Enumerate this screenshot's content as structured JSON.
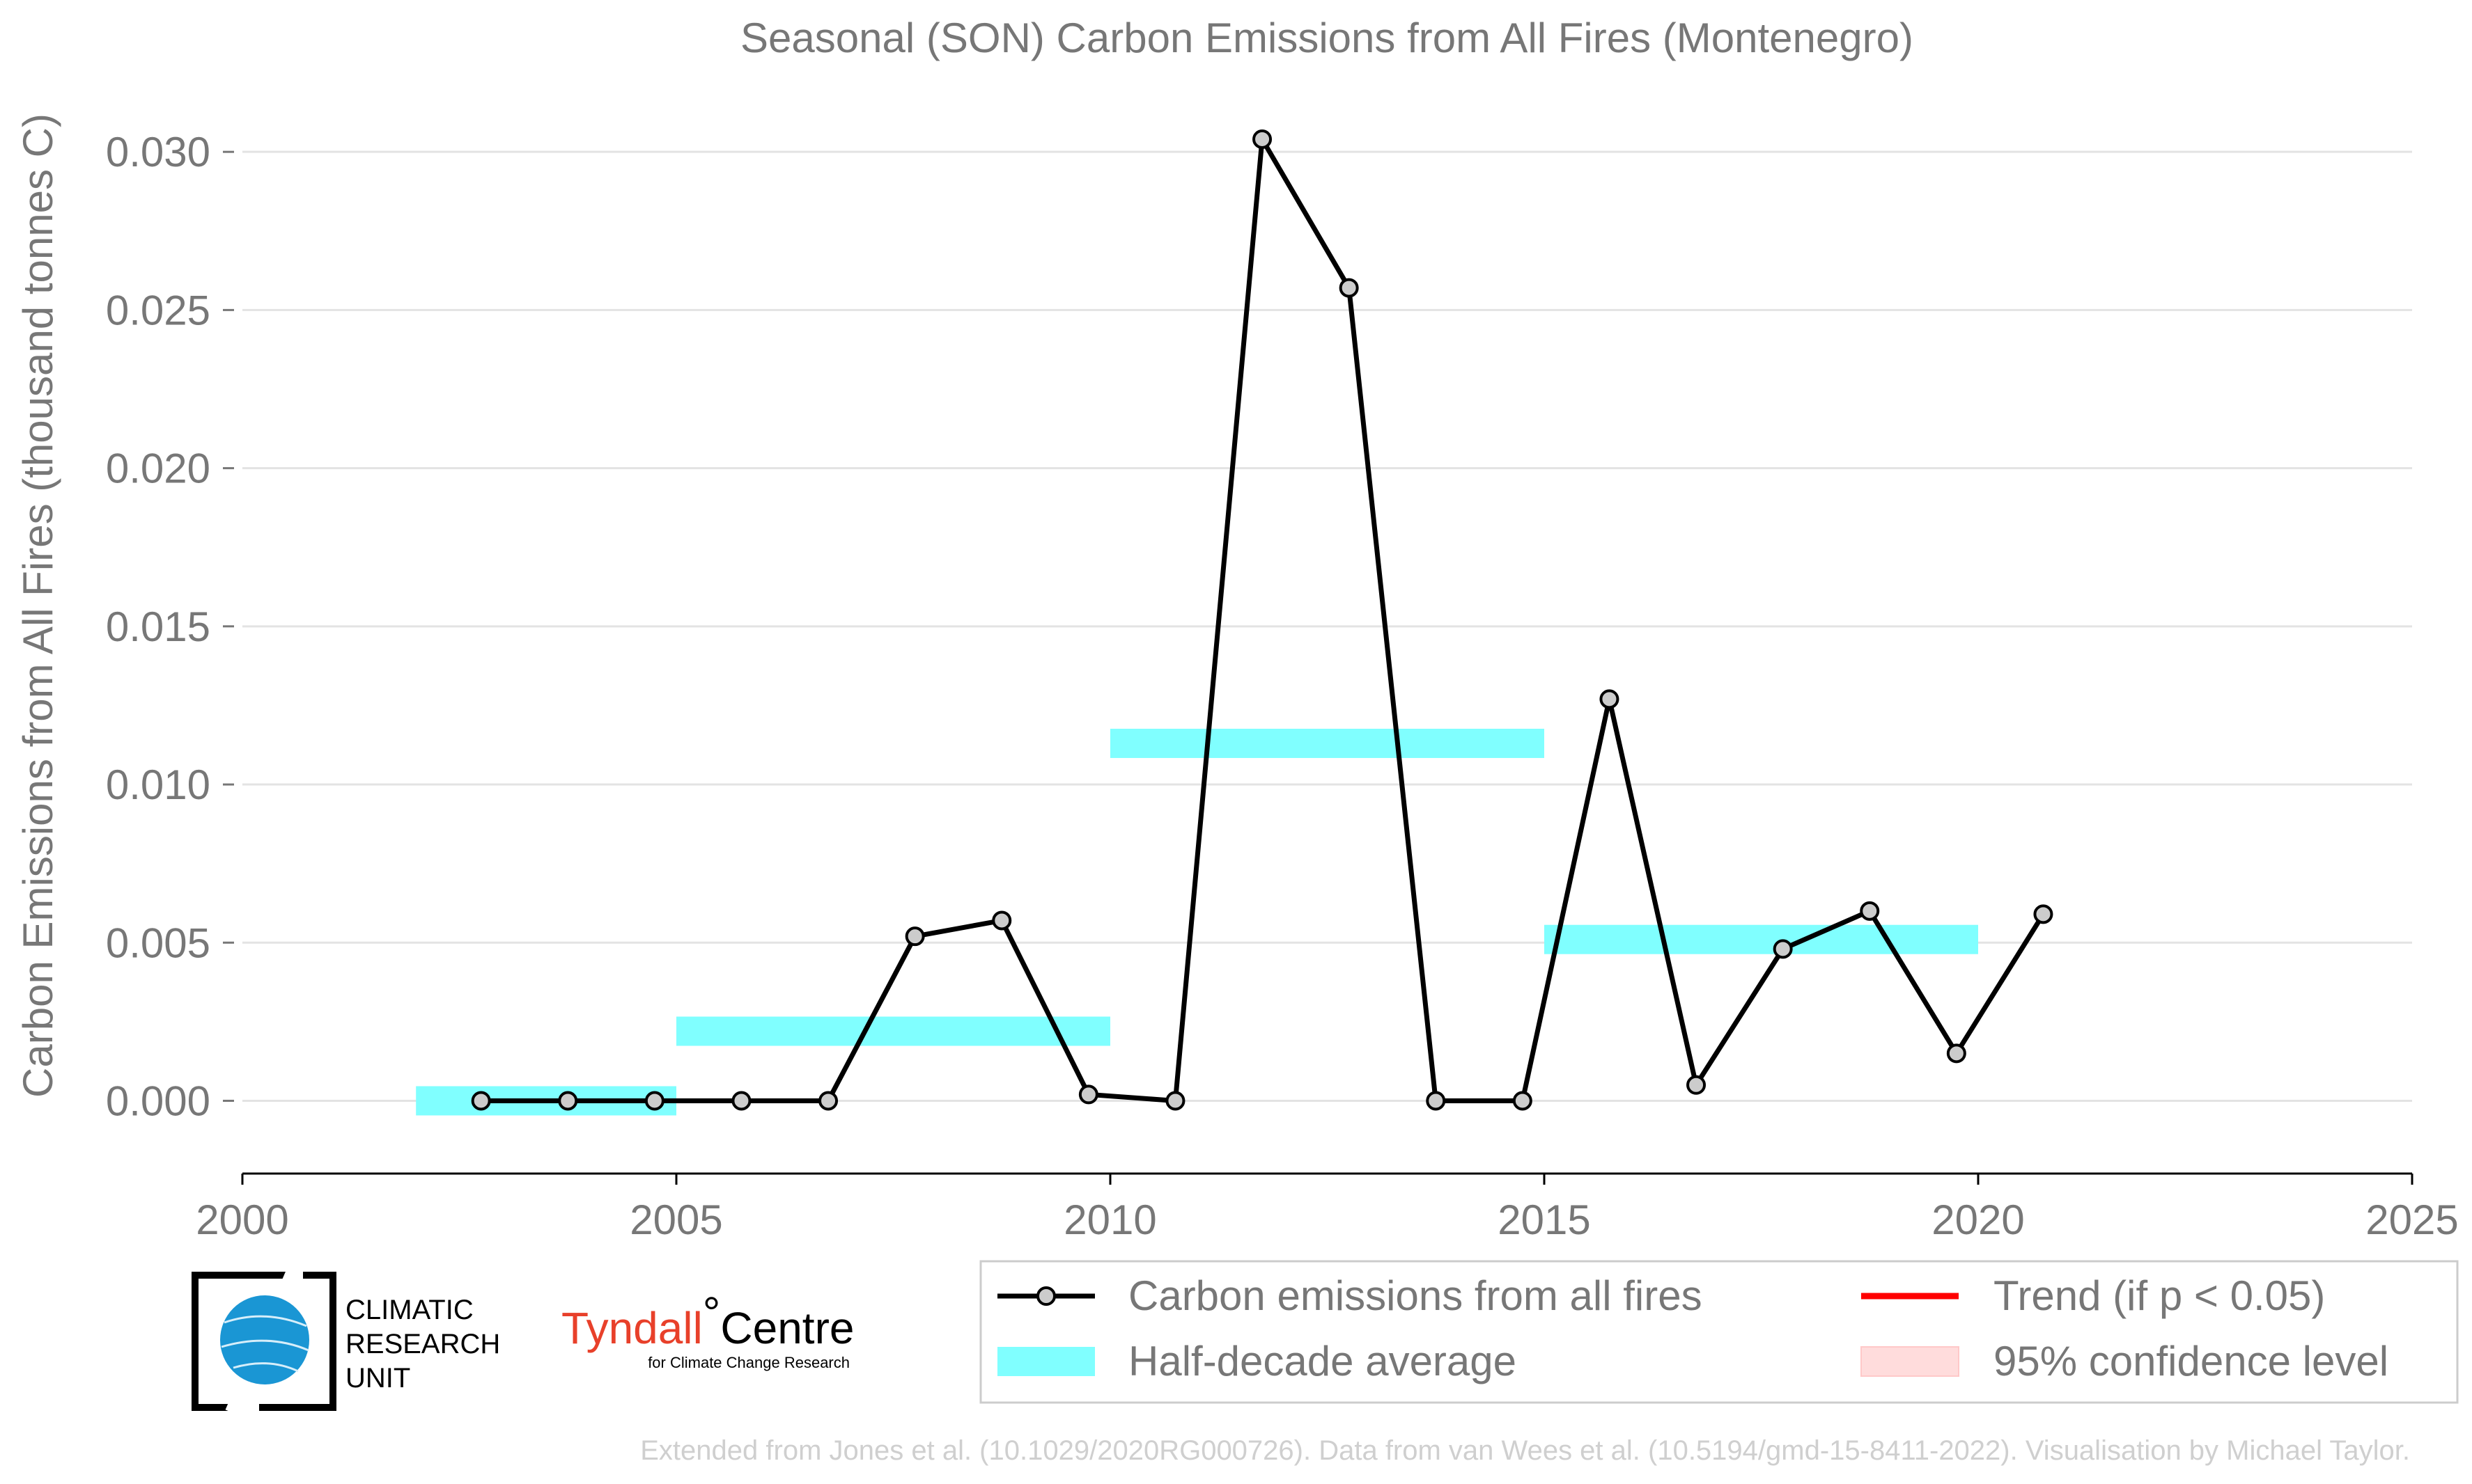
{
  "chart_data": {
    "type": "line",
    "title": "Seasonal (SON) Carbon Emissions from All Fires (Montenegro)",
    "ylabel": "Carbon Emissions from All Fires (thousand tonnes C)",
    "xlim": [
      2000,
      2025
    ],
    "ylim": [
      -0.0023,
      0.0315
    ],
    "xticks": [
      "2000",
      "2005",
      "2010",
      "2015",
      "2020",
      "2025"
    ],
    "yticks": [
      "0.000",
      "0.005",
      "0.010",
      "0.015",
      "0.020",
      "0.025",
      "0.030"
    ],
    "grid": "horizontal",
    "series": [
      {
        "name": "Carbon emissions from all fires",
        "color": "#000000",
        "marker_fill": "#cccccc",
        "x": [
          2002.75,
          2003.75,
          2004.75,
          2005.75,
          2006.75,
          2007.75,
          2008.75,
          2009.75,
          2010.75,
          2011.75,
          2012.75,
          2013.75,
          2014.75,
          2015.75,
          2016.75,
          2017.75,
          2018.75,
          2019.75,
          2020.75
        ],
        "y": [
          0.0,
          0.0,
          0.0,
          0.0,
          0.0,
          0.0052,
          0.0057,
          0.0002,
          0.0,
          0.0304,
          0.0257,
          0.0,
          0.0,
          0.0127,
          0.0005,
          0.0048,
          0.006,
          0.0015,
          0.0059
        ]
      }
    ],
    "half_decade_average": {
      "name": "Half-decade average",
      "color": "#80ffff",
      "segments": [
        {
          "x0": 2002,
          "x1": 2005,
          "y": 0.0
        },
        {
          "x0": 2005,
          "x1": 2010,
          "y": 0.0022
        },
        {
          "x0": 2010,
          "x1": 2015,
          "y": 0.0113
        },
        {
          "x0": 2015,
          "x1": 2020,
          "y": 0.0051
        }
      ]
    },
    "legend": {
      "placement": "bottom",
      "entries": [
        {
          "label": "Carbon emissions from all fires",
          "kind": "line-marker",
          "color": "#000000"
        },
        {
          "label": "Trend (if p < 0.05)",
          "kind": "line",
          "color": "#ff0000"
        },
        {
          "label": "Half-decade average",
          "kind": "band",
          "color": "#80ffff"
        },
        {
          "label": "95% confidence level",
          "kind": "band",
          "color": "#ffdcdc"
        }
      ]
    },
    "footer": "Extended from Jones et al. (10.1029/2020RG000726). Data from van Wees et al. (10.5194/gmd-15-8411-2022). Visualisation by Michael Taylor."
  },
  "logos": {
    "cru": [
      "CLIMATIC",
      "RESEARCH",
      "UNIT"
    ],
    "tyndall_main": "Tyndall",
    "tyndall_degree": "°",
    "tyndall_centre": "Centre",
    "tyndall_sub": "for Climate Change Research"
  }
}
